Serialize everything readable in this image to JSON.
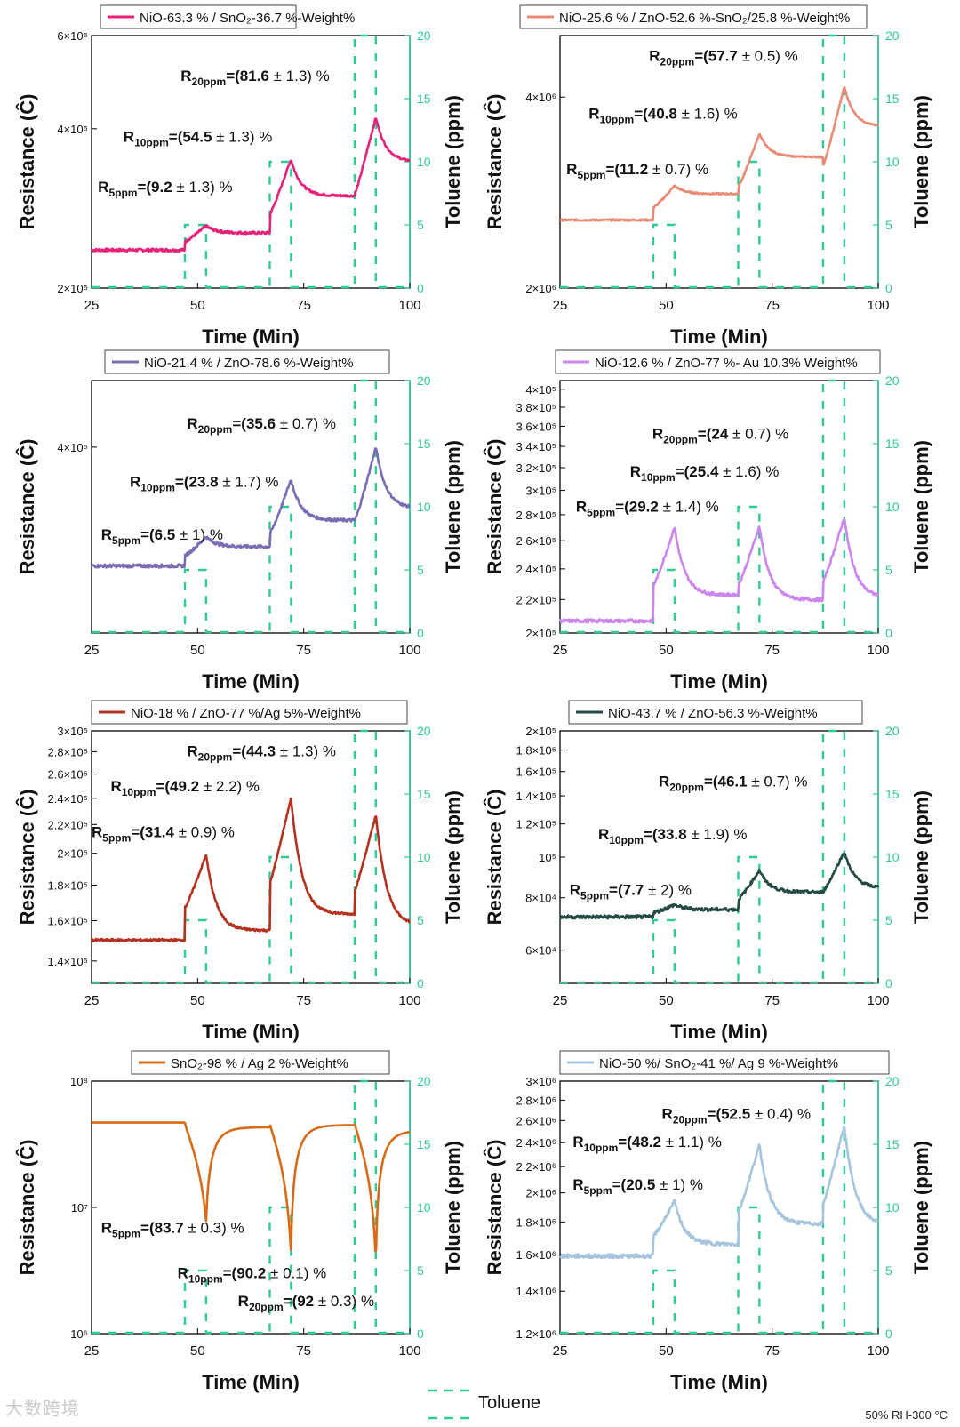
{
  "footer": {
    "condition": "50% RH-300 °C",
    "watermark": "大数跨境"
  },
  "shared_legend": {
    "label": "Toluene",
    "color": "#2ecc8f"
  },
  "chart_data": [
    {
      "type": "line",
      "legend": "NiO-63.3 % / SnO₂-36.7 %-Weight%",
      "color": "#e8207a",
      "xlabel": "Time (Min)",
      "ylabel": "Resistance (Ĉ)",
      "y2label": "Toluene (ppm)",
      "xlim": [
        25,
        100
      ],
      "xticks": [
        "25",
        "50",
        "75",
        "100"
      ],
      "yscale": "log",
      "ylim": [
        200000,
        600000
      ],
      "yticks": [
        {
          "v": 200000,
          "label": "2×10⁵"
        },
        {
          "v": 400000,
          "label": "4×10⁵"
        },
        {
          "v": 600000,
          "label": "6×10⁵"
        }
      ],
      "y2lim": [
        0,
        20
      ],
      "y2ticks": [
        "0",
        "5",
        "10",
        "15",
        "20"
      ],
      "pulses": [
        {
          "start": 47,
          "end": 52,
          "ppm": 5
        },
        {
          "start": 67,
          "end": 72,
          "ppm": 10
        },
        {
          "start": 87,
          "end": 92,
          "ppm": 20
        }
      ],
      "baseline": 236000,
      "peaks": [
        262000,
        350000,
        420000
      ],
      "recovery": [
        0.3,
        0.45,
        0.4
      ],
      "noise": 1500,
      "annotations": [
        {
          "sub": "5ppm",
          "val": "9.2",
          "err": "± 1.3) %"
        },
        {
          "sub": "10ppm",
          "val": "54.5",
          "err": "± 1.3) %"
        },
        {
          "sub": "20ppm",
          "val": "81.6",
          "err": "± 1.3) %"
        }
      ]
    },
    {
      "type": "line",
      "legend": "NiO-25.6 % / ZnO-52.6 %-SnO₂/25.8 %-Weight%",
      "color": "#eb8a74",
      "xlabel": "Time (Min)",
      "ylabel": "Resistance (Ĉ)",
      "y2label": "Toluene (ppm)",
      "xlim": [
        25,
        100
      ],
      "xticks": [
        "25",
        "50",
        "75",
        "100"
      ],
      "yscale": "log",
      "ylim": [
        2000000,
        5000000
      ],
      "yticks": [
        {
          "v": 2000000,
          "label": "2×10⁶"
        },
        {
          "v": 4000000,
          "label": "4×10⁶"
        }
      ],
      "y2lim": [
        0,
        20
      ],
      "y2ticks": [
        "0",
        "5",
        "10",
        "15",
        "20"
      ],
      "pulses": [
        {
          "start": 47,
          "end": 52,
          "ppm": 5
        },
        {
          "start": 67,
          "end": 72,
          "ppm": 10
        },
        {
          "start": 87,
          "end": 92,
          "ppm": 20
        }
      ],
      "baseline": 2560000,
      "peaks": [
        2900000,
        3500000,
        4150000
      ],
      "recovery": [
        0.25,
        0.3,
        0.35
      ],
      "noise": 8000,
      "annotations": [
        {
          "sub": "5ppm",
          "val": "11.2",
          "err": "± 0.7) %"
        },
        {
          "sub": "10ppm",
          "val": "40.8",
          "err": "± 1.6) %"
        },
        {
          "sub": "20ppm",
          "val": "57.7",
          "err": "± 0.5) %"
        }
      ]
    },
    {
      "type": "line",
      "legend": "NiO-21.4 % / ZnO-78.6 %-Weight%",
      "color": "#7b6bb5",
      "xlabel": "Time (Min)",
      "ylabel": "Resistance (Ĉ)",
      "y2label": "Toluene (ppm)",
      "xlim": [
        25,
        100
      ],
      "xticks": [
        "25",
        "50",
        "75",
        "100"
      ],
      "yscale": "log",
      "ylim": [
        255000,
        470000
      ],
      "yticks": [
        {
          "v": 400000,
          "label": "4×10⁵"
        }
      ],
      "y2lim": [
        0,
        20
      ],
      "y2ticks": [
        "0",
        "5",
        "10",
        "15",
        "20"
      ],
      "pulses": [
        {
          "start": 47,
          "end": 52,
          "ppm": 5
        },
        {
          "start": 67,
          "end": 72,
          "ppm": 10
        },
        {
          "start": 87,
          "end": 92,
          "ppm": 20
        }
      ],
      "baseline": 300000,
      "peaks": [
        322000,
        370000,
        400000
      ],
      "recovery": [
        0.35,
        0.5,
        0.55
      ],
      "noise": 1200,
      "annotations": [
        {
          "sub": "5ppm",
          "val": "6.5",
          "err": "± 1) %"
        },
        {
          "sub": "10ppm",
          "val": "23.8",
          "err": "± 1.7) %"
        },
        {
          "sub": "20ppm",
          "val": "35.6",
          "err": "± 0.7) %"
        }
      ]
    },
    {
      "type": "line",
      "legend": "NiO-12.6 % / ZnO-77 %- Au 10.3% Weight%",
      "color": "#cc84ee",
      "xlabel": "Time (Min)",
      "ylabel": "Resistance (Ĉ)",
      "y2label": "Toluene (ppm)",
      "xlim": [
        25,
        100
      ],
      "xticks": [
        "25",
        "50",
        "75",
        "100"
      ],
      "yscale": "log",
      "ylim": [
        200000,
        410000
      ],
      "yticks": [
        {
          "v": 200000,
          "label": "2×10⁵"
        },
        {
          "v": 220000,
          "label": "2.2×10⁵"
        },
        {
          "v": 240000,
          "label": "2.4×10⁵"
        },
        {
          "v": 260000,
          "label": "2.6×10⁵"
        },
        {
          "v": 280000,
          "label": "2.8×10⁵"
        },
        {
          "v": 300000,
          "label": "3×10⁵"
        },
        {
          "v": 320000,
          "label": "3.2×10⁵"
        },
        {
          "v": 340000,
          "label": "3.4×10⁵"
        },
        {
          "v": 360000,
          "label": "3.6×10⁵"
        },
        {
          "v": 380000,
          "label": "3.8×10⁵"
        },
        {
          "v": 400000,
          "label": "4×10⁵"
        }
      ],
      "y2lim": [
        0,
        20
      ],
      "y2ticks": [
        "0",
        "5",
        "10",
        "15",
        "20"
      ],
      "pulses": [
        {
          "start": 47,
          "end": 52,
          "ppm": 5
        },
        {
          "start": 67,
          "end": 72,
          "ppm": 10
        },
        {
          "start": 87,
          "end": 92,
          "ppm": 20
        }
      ],
      "baseline": 207000,
      "peaks": [
        270000,
        271000,
        278000
      ],
      "recovery": [
        0.75,
        0.8,
        0.8
      ],
      "noise": 1000,
      "annotations": [
        {
          "sub": "5ppm",
          "val": "29.2",
          "err": "± 1.4) %"
        },
        {
          "sub": "10ppm",
          "val": "25.4",
          "err": "± 1.6) %"
        },
        {
          "sub": "20ppm",
          "val": "24",
          "err": "± 0.7) %"
        }
      ]
    },
    {
      "type": "line",
      "legend": "NiO-18 % / ZnO-77 %/Ag 5%-Weight%",
      "color": "#b5301e",
      "xlabel": "Time (Min)",
      "ylabel": "Resistance (Ĉ)",
      "y2label": "Toluene (ppm)",
      "xlim": [
        25,
        100
      ],
      "xticks": [
        "25",
        "50",
        "75",
        "100"
      ],
      "yscale": "log",
      "ylim": [
        130000,
        300000
      ],
      "yticks": [
        {
          "v": 140000,
          "label": "1.4×10⁵"
        },
        {
          "v": 160000,
          "label": "1.6×10⁵"
        },
        {
          "v": 180000,
          "label": "1.8×10⁵"
        },
        {
          "v": 200000,
          "label": "2×10⁵"
        },
        {
          "v": 220000,
          "label": "2.2×10⁵"
        },
        {
          "v": 240000,
          "label": "2.4×10⁵"
        },
        {
          "v": 260000,
          "label": "2.6×10⁵"
        },
        {
          "v": 280000,
          "label": "2.8×10⁵"
        },
        {
          "v": 300000,
          "label": "3×10⁵"
        }
      ],
      "y2lim": [
        0,
        20
      ],
      "y2ticks": [
        "0",
        "5",
        "10",
        "15",
        "20"
      ],
      "pulses": [
        {
          "start": 47,
          "end": 52,
          "ppm": 5
        },
        {
          "start": 67,
          "end": 72,
          "ppm": 10
        },
        {
          "start": 87,
          "end": 92,
          "ppm": 20
        }
      ],
      "baseline": 150000,
      "peaks": [
        199000,
        240000,
        227000
      ],
      "recovery": [
        0.9,
        0.85,
        0.9
      ],
      "noise": 600,
      "annotations": [
        {
          "sub": "5ppm",
          "val": "31.4",
          "err": "± 0.9) %"
        },
        {
          "sub": "10ppm",
          "val": "49.2",
          "err": "± 2.2) %"
        },
        {
          "sub": "20ppm",
          "val": "44.3",
          "err": "± 1.3) %"
        }
      ]
    },
    {
      "type": "line",
      "legend": "NiO-43.7 % / ZnO-56.3 %-Weight%",
      "color": "#244a45",
      "xlabel": "Time (Min)",
      "ylabel": "Resistance (Ĉ)",
      "y2label": "Toluene (ppm)",
      "xlim": [
        25,
        100
      ],
      "xticks": [
        "25",
        "50",
        "75",
        "100"
      ],
      "yscale": "log",
      "ylim": [
        50000,
        200000
      ],
      "yticks": [
        {
          "v": 60000,
          "label": "6×10⁴"
        },
        {
          "v": 80000,
          "label": "8×10⁴"
        },
        {
          "v": 100000,
          "label": "10⁵"
        },
        {
          "v": 120000,
          "label": "1.2×10⁵"
        },
        {
          "v": 140000,
          "label": "1.4×10⁵"
        },
        {
          "v": 160000,
          "label": "1.6×10⁵"
        },
        {
          "v": 180000,
          "label": "1.8×10⁵"
        },
        {
          "v": 200000,
          "label": "2×10⁵"
        }
      ],
      "y2lim": [
        0,
        20
      ],
      "y2ticks": [
        "0",
        "5",
        "10",
        "15",
        "20"
      ],
      "pulses": [
        {
          "start": 47,
          "end": 52,
          "ppm": 5
        },
        {
          "start": 67,
          "end": 72,
          "ppm": 10
        },
        {
          "start": 87,
          "end": 92,
          "ppm": 20
        }
      ],
      "baseline": 72000,
      "peaks": [
        77000,
        93000,
        103000
      ],
      "recovery": [
        0.4,
        0.5,
        0.6
      ],
      "noise": 700,
      "annotations": [
        {
          "sub": "5ppm",
          "val": "7.7",
          "err": "± 2) %"
        },
        {
          "sub": "10ppm",
          "val": "33.8",
          "err": "± 1.9) %"
        },
        {
          "sub": "20ppm",
          "val": "46.1",
          "err": "± 0.7) %"
        }
      ]
    },
    {
      "type": "line",
      "legend": "SnO₂-98 % / Ag 2 %-Weight%",
      "color": "#d96a17",
      "xlabel": "Time (Min)",
      "ylabel": "Resistance (Ĉ)",
      "y2label": "Toluene (ppm)",
      "xlim": [
        25,
        100
      ],
      "xticks": [
        "25",
        "50",
        "75",
        "100"
      ],
      "yscale": "log",
      "ylim": [
        1000000,
        100000000
      ],
      "yticks": [
        {
          "v": 1000000,
          "label": "10⁶"
        },
        {
          "v": 10000000,
          "label": "10⁷"
        },
        {
          "v": 100000000,
          "label": "10⁸"
        }
      ],
      "y2lim": [
        0,
        20
      ],
      "y2ticks": [
        "0",
        "5",
        "10",
        "15",
        "20"
      ],
      "pulses": [
        {
          "start": 47,
          "end": 52,
          "ppm": 5
        },
        {
          "start": 67,
          "end": 72,
          "ppm": 10
        },
        {
          "start": 87,
          "end": 92,
          "ppm": 20
        }
      ],
      "baseline": 47000000,
      "peaks": [
        7800000,
        4300000,
        3800000
      ],
      "recovery": [
        0.9,
        0.95,
        0.85
      ],
      "noise": 0,
      "reducing": true,
      "annotations": [
        {
          "sub": "5ppm",
          "val": "83.7",
          "err": "± 0.3) %"
        },
        {
          "sub": "10ppm",
          "val": "90.2",
          "err": "± 0.1) %"
        },
        {
          "sub": "20ppm",
          "val": "92",
          "err": "± 0.3) %"
        }
      ]
    },
    {
      "type": "line",
      "legend": "NiO-50 %/ SnO₂-41 %/ Ag 9 %-Weight%",
      "color": "#a7c4df",
      "xlabel": "Time (Min)",
      "ylabel": "Resistance (Ĉ)",
      "y2label": "Toluene (ppm)",
      "xlim": [
        25,
        100
      ],
      "xticks": [
        "25",
        "50",
        "75",
        "100"
      ],
      "yscale": "log",
      "ylim": [
        1200000,
        3000000
      ],
      "yticks": [
        {
          "v": 1200000,
          "label": "1.2×10⁶"
        },
        {
          "v": 1400000,
          "label": "1.4×10⁶"
        },
        {
          "v": 1600000,
          "label": "1.6×10⁶"
        },
        {
          "v": 1800000,
          "label": "1.8×10⁶"
        },
        {
          "v": 2000000,
          "label": "2×10⁶"
        },
        {
          "v": 2200000,
          "label": "2.2×10⁶"
        },
        {
          "v": 2400000,
          "label": "2.4×10⁶"
        },
        {
          "v": 2600000,
          "label": "2.6×10⁶"
        },
        {
          "v": 2800000,
          "label": "2.8×10⁶"
        },
        {
          "v": 3000000,
          "label": "3×10⁶"
        }
      ],
      "y2lim": [
        0,
        20
      ],
      "y2ticks": [
        "0",
        "5",
        "10",
        "15",
        "20"
      ],
      "pulses": [
        {
          "start": 47,
          "end": 52,
          "ppm": 5
        },
        {
          "start": 67,
          "end": 72,
          "ppm": 10
        },
        {
          "start": 87,
          "end": 92,
          "ppm": 20
        }
      ],
      "baseline": 1590000,
      "peaks": [
        1940000,
        2380000,
        2550000
      ],
      "recovery": [
        0.8,
        0.75,
        0.8
      ],
      "noise": 12000,
      "annotations": [
        {
          "sub": "5ppm",
          "val": "20.5",
          "err": "± 1) %"
        },
        {
          "sub": "10ppm",
          "val": "48.2",
          "err": "± 1.1) %"
        },
        {
          "sub": "20ppm",
          "val": "52.5",
          "err": "± 0.4) %"
        }
      ]
    }
  ]
}
